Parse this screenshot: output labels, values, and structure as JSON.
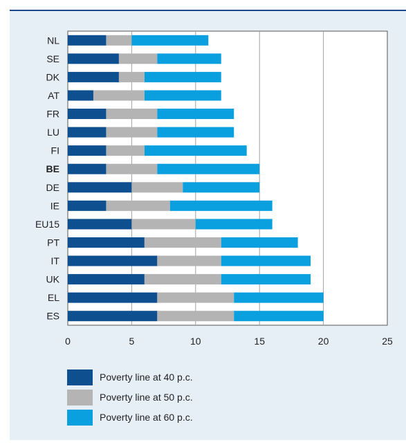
{
  "chart_data": {
    "type": "bar",
    "stacked": true,
    "orientation": "horizontal",
    "categories": [
      "NL",
      "SE",
      "DK",
      "AT",
      "FR",
      "LU",
      "FI",
      "BE",
      "DE",
      "IE",
      "EU15",
      "PT",
      "IT",
      "UK",
      "EL",
      "ES"
    ],
    "highlight_category": "BE",
    "series": [
      {
        "name": "Poverty line at 40 p.c.",
        "color": "#0e4f8f",
        "values": [
          3,
          4,
          4,
          2,
          3,
          3,
          3,
          3,
          5,
          3,
          5,
          6,
          7,
          6,
          7,
          7
        ]
      },
      {
        "name": "Poverty line at 50 p.c.",
        "color": "#b4b4b4",
        "values": [
          2,
          3,
          2,
          4,
          4,
          4,
          3,
          4,
          4,
          5,
          5,
          6,
          5,
          6,
          6,
          6
        ]
      },
      {
        "name": "Poverty line at 60 p.c.",
        "color": "#0aa0e0",
        "values": [
          6,
          5,
          6,
          6,
          6,
          6,
          8,
          8,
          6,
          8,
          6,
          6,
          7,
          7,
          7,
          7
        ]
      }
    ],
    "xlim": [
      0,
      25
    ],
    "xticks": [
      0,
      5,
      10,
      15,
      20,
      25
    ],
    "grid": true,
    "legend_position": "bottom-left"
  }
}
